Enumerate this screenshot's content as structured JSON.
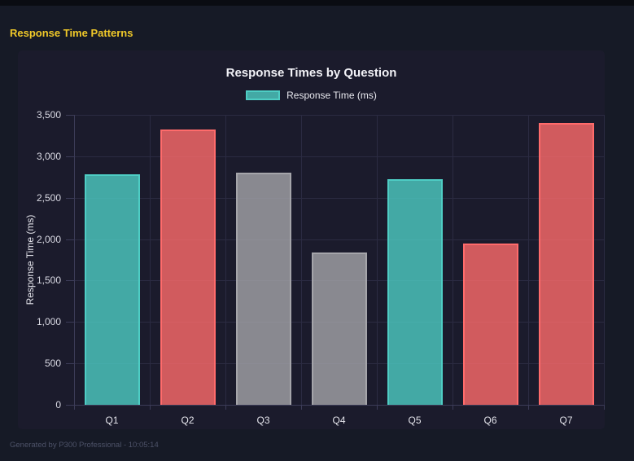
{
  "page": {
    "header_title": "Response Time Patterns",
    "footer": "Generated by P300 Professional - 10:05:14"
  },
  "chart": {
    "title": "Response Times by Question",
    "legend_label": "Response Time (ms)",
    "y_axis_label": "Response Time (ms)"
  },
  "chart_data": {
    "type": "bar",
    "title": "Response Times by Question",
    "categories": [
      "Q1",
      "Q2",
      "Q3",
      "Q4",
      "Q5",
      "Q6",
      "Q7"
    ],
    "values": [
      2780,
      3320,
      2800,
      1840,
      2720,
      1950,
      3400
    ],
    "bar_colors": [
      "teal",
      "red",
      "gray",
      "gray",
      "teal",
      "red",
      "red"
    ],
    "colors": {
      "teal": "#4ECDC4",
      "red": "#FF6B6B",
      "gray": "#A5A5AA"
    },
    "xlabel": "",
    "ylabel": "Response Time (ms)",
    "ylim": [
      0,
      3500
    ],
    "y_tick_step": 500,
    "y_ticks": [
      "0",
      "500",
      "1,000",
      "1,500",
      "2,000",
      "2,500",
      "3,000",
      "3,500"
    ],
    "legend": {
      "position": "top",
      "entries": [
        "Response Time (ms)"
      ]
    },
    "grid": true,
    "fill_opacity": 0.8
  },
  "theme": {
    "page_bg": "#161A26",
    "panel_bg": "#1B1B2C",
    "top_strip_bg": "#0A0C12",
    "header_yellow": "#F0C929",
    "gridline": "#2B2B42",
    "axis_line": "#3C3C58",
    "text_light": "#E8E8EE",
    "footer_text": "#4D5268"
  }
}
